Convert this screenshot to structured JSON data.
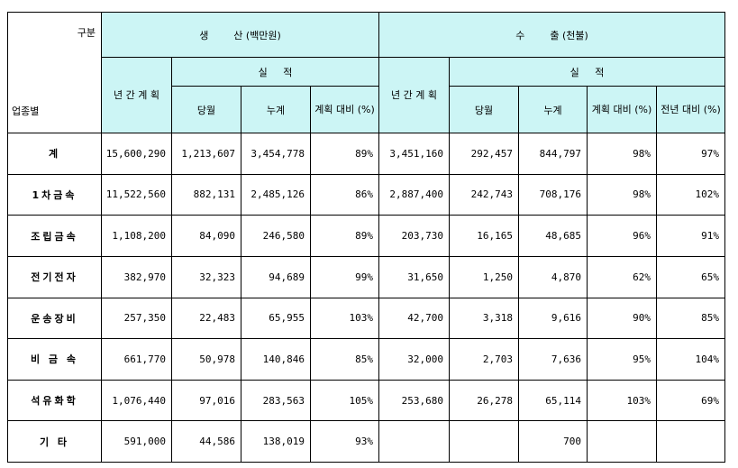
{
  "header": {
    "corner_top": "구분",
    "corner_bottom": "업종별",
    "production_group": "생        산 (백만원)",
    "export_group": "수        출 (천불)",
    "annual_plan": "년 간\n계 획",
    "performance": "실     적",
    "current_month": "당월",
    "cumulative": "누계",
    "vs_plan": "계획\n대비\n(%)",
    "vs_prev_year": "전년\n대비\n(%)"
  },
  "rows": [
    {
      "label": "계",
      "p_plan": "15,600,290",
      "p_month": "1,213,607",
      "p_cum": "3,454,778",
      "p_pct": "89%",
      "e_plan": "3,451,160",
      "e_month": "292,457",
      "e_cum": "844,797",
      "e_pct": "98%",
      "e_yoy": "97%"
    },
    {
      "label": "1차금속",
      "p_plan": "11,522,560",
      "p_month": "882,131",
      "p_cum": "2,485,126",
      "p_pct": "86%",
      "e_plan": "2,887,400",
      "e_month": "242,743",
      "e_cum": "708,176",
      "e_pct": "98%",
      "e_yoy": "102%"
    },
    {
      "label": "조립금속",
      "p_plan": "1,108,200",
      "p_month": "84,090",
      "p_cum": "246,580",
      "p_pct": "89%",
      "e_plan": "203,730",
      "e_month": "16,165",
      "e_cum": "48,685",
      "e_pct": "96%",
      "e_yoy": "91%"
    },
    {
      "label": "전기전자",
      "p_plan": "382,970",
      "p_month": "32,323",
      "p_cum": "94,689",
      "p_pct": "99%",
      "e_plan": "31,650",
      "e_month": "1,250",
      "e_cum": "4,870",
      "e_pct": "62%",
      "e_yoy": "65%"
    },
    {
      "label": "운송장비",
      "p_plan": "257,350",
      "p_month": "22,483",
      "p_cum": "65,955",
      "p_pct": "103%",
      "e_plan": "42,700",
      "e_month": "3,318",
      "e_cum": "9,616",
      "e_pct": "90%",
      "e_yoy": "85%"
    },
    {
      "label": "비 금 속",
      "p_plan": "661,770",
      "p_month": "50,978",
      "p_cum": "140,846",
      "p_pct": "85%",
      "e_plan": "32,000",
      "e_month": "2,703",
      "e_cum": "7,636",
      "e_pct": "95%",
      "e_yoy": "104%"
    },
    {
      "label": "석유화학",
      "p_plan": "1,076,440",
      "p_month": "97,016",
      "p_cum": "283,563",
      "p_pct": "105%",
      "e_plan": "253,680",
      "e_month": "26,278",
      "e_cum": "65,114",
      "e_pct": "103%",
      "e_yoy": "69%"
    },
    {
      "label": "기  타",
      "p_plan": "591,000",
      "p_month": "44,586",
      "p_cum": "138,019",
      "p_pct": "93%",
      "e_plan": "",
      "e_month": "",
      "e_cum": "700",
      "e_pct": "",
      "e_yoy": ""
    }
  ]
}
